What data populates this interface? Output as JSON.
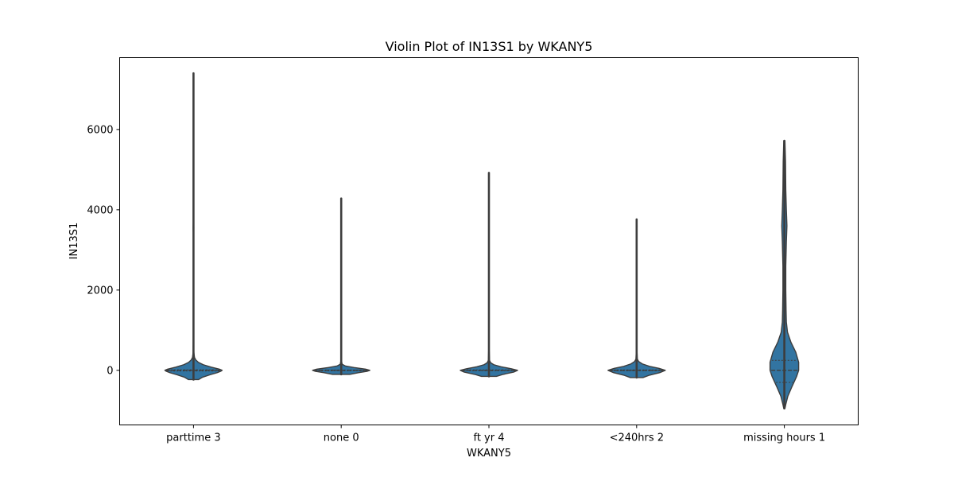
{
  "chart_data": {
    "type": "violin",
    "title": "Violin Plot of IN13S1 by WKANY5",
    "xlabel": "WKANY5",
    "ylabel": "IN13S1",
    "ylim": [
      -1360,
      7790
    ],
    "yticks": [
      0,
      2000,
      4000,
      6000
    ],
    "ytick_labels": [
      "0",
      "2000",
      "4000",
      "6000"
    ],
    "grid": false,
    "color": "#3274a1",
    "edge_color": "#3d3d3d",
    "categories": [
      "parttime 3",
      "none 0",
      "ft yr 4",
      "<240hrs 2",
      "missing hours 1"
    ],
    "series": [
      {
        "category": "parttime 3",
        "min": -230,
        "max": 7400,
        "q1": -15,
        "median": 0,
        "q3": 15,
        "profile": [
          [
            -230,
            0.18
          ],
          [
            -170,
            0.32
          ],
          [
            -110,
            0.58
          ],
          [
            -60,
            0.82
          ],
          [
            -20,
            0.96
          ],
          [
            0,
            1.0
          ],
          [
            30,
            0.9
          ],
          [
            80,
            0.62
          ],
          [
            140,
            0.34
          ],
          [
            200,
            0.17
          ],
          [
            260,
            0.08
          ],
          [
            320,
            0.035
          ],
          [
            450,
            0.012
          ],
          [
            800,
            0.006
          ],
          [
            2000,
            0.004
          ],
          [
            3400,
            0.005
          ],
          [
            3550,
            0.012
          ],
          [
            3700,
            0.005
          ],
          [
            5000,
            0.003
          ],
          [
            6500,
            0.003
          ],
          [
            7400,
            0.002
          ]
        ]
      },
      {
        "category": "none 0",
        "min": -100,
        "max": 4280,
        "q1": -10,
        "median": 0,
        "q3": 10,
        "profile": [
          [
            -100,
            0.3
          ],
          [
            -60,
            0.6
          ],
          [
            -25,
            0.9
          ],
          [
            0,
            1.0
          ],
          [
            30,
            0.85
          ],
          [
            70,
            0.45
          ],
          [
            110,
            0.14
          ],
          [
            150,
            0.035
          ],
          [
            220,
            0.012
          ],
          [
            600,
            0.007
          ],
          [
            2000,
            0.005
          ],
          [
            3500,
            0.006
          ],
          [
            3600,
            0.008
          ],
          [
            3800,
            0.005
          ],
          [
            4280,
            0.003
          ]
        ]
      },
      {
        "category": "ft yr 4",
        "min": -150,
        "max": 4920,
        "q1": -12,
        "median": 0,
        "q3": 12,
        "profile": [
          [
            -150,
            0.26
          ],
          [
            -100,
            0.5
          ],
          [
            -45,
            0.86
          ],
          [
            0,
            1.0
          ],
          [
            40,
            0.78
          ],
          [
            90,
            0.42
          ],
          [
            140,
            0.17
          ],
          [
            190,
            0.06
          ],
          [
            250,
            0.02
          ],
          [
            500,
            0.008
          ],
          [
            2000,
            0.005
          ],
          [
            3550,
            0.007
          ],
          [
            3650,
            0.005
          ],
          [
            4920,
            0.003
          ]
        ]
      },
      {
        "category": "<240hrs 2",
        "min": -180,
        "max": 3760,
        "q1": -12,
        "median": 0,
        "q3": 12,
        "profile": [
          [
            -180,
            0.22
          ],
          [
            -120,
            0.45
          ],
          [
            -60,
            0.8
          ],
          [
            0,
            1.0
          ],
          [
            50,
            0.78
          ],
          [
            100,
            0.45
          ],
          [
            160,
            0.2
          ],
          [
            220,
            0.07
          ],
          [
            280,
            0.025
          ],
          [
            500,
            0.01
          ],
          [
            2000,
            0.007
          ],
          [
            3400,
            0.008
          ],
          [
            3600,
            0.015
          ],
          [
            3760,
            0.005
          ]
        ]
      },
      {
        "category": "missing hours 1",
        "min": -950,
        "max": 5720,
        "q1": -300,
        "median": 0,
        "q3": 250,
        "profile": [
          [
            -950,
            0.02
          ],
          [
            -850,
            0.05
          ],
          [
            -650,
            0.12
          ],
          [
            -400,
            0.27
          ],
          [
            -150,
            0.43
          ],
          [
            0,
            0.5
          ],
          [
            200,
            0.5
          ],
          [
            450,
            0.4
          ],
          [
            700,
            0.23
          ],
          [
            950,
            0.11
          ],
          [
            1200,
            0.07
          ],
          [
            1500,
            0.06
          ],
          [
            2000,
            0.05
          ],
          [
            2600,
            0.05
          ],
          [
            3200,
            0.07
          ],
          [
            3600,
            0.09
          ],
          [
            4000,
            0.07
          ],
          [
            4500,
            0.05
          ],
          [
            5200,
            0.04
          ],
          [
            5720,
            0.02
          ]
        ]
      }
    ]
  }
}
